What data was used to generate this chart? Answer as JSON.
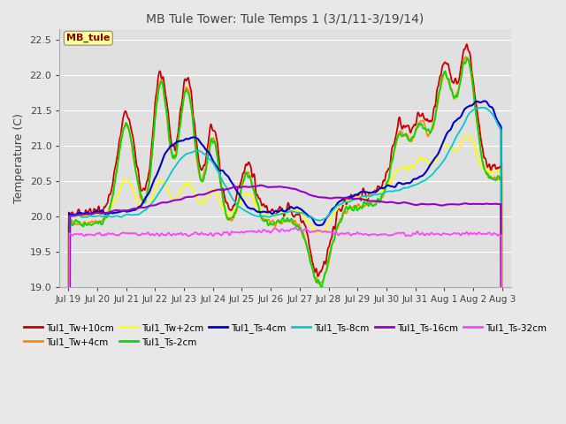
{
  "title": "MB Tule Tower: Tule Temps 1 (3/1/11-3/19/14)",
  "ylabel": "Temperature (C)",
  "ylim": [
    19.0,
    22.65
  ],
  "yticks": [
    19.0,
    19.5,
    20.0,
    20.5,
    21.0,
    21.5,
    22.0,
    22.5
  ],
  "x_labels": [
    "Jul 19",
    "Jul 20",
    "Jul 21",
    "Jul 22",
    "Jul 23",
    "Jul 24",
    "Jul 25",
    "Jul 26",
    "Jul 27",
    "Jul 28",
    "Jul 29",
    "Jul 30",
    "Jul 31",
    "Aug 1",
    "Aug 2",
    "Aug 3"
  ],
  "n_points": 960,
  "background_color": "#e8e8e8",
  "plot_bg_color": "#e0e0e0",
  "legend_label": "MB_tule",
  "series": [
    {
      "label": "Tul1_Tw+10cm",
      "color": "#cc0000"
    },
    {
      "label": "Tul1_Tw+4cm",
      "color": "#ff8800"
    },
    {
      "label": "Tul1_Tw+2cm",
      "color": "#ffff00"
    },
    {
      "label": "Tul1_Ts-2cm",
      "color": "#00dd00"
    },
    {
      "label": "Tul1_Ts-4cm",
      "color": "#0000cc"
    },
    {
      "label": "Tul1_Ts-8cm",
      "color": "#00cccc"
    },
    {
      "label": "Tul1_Ts-16cm",
      "color": "#9900cc"
    },
    {
      "label": "Tul1_Ts-32cm",
      "color": "#ff44ff"
    }
  ]
}
